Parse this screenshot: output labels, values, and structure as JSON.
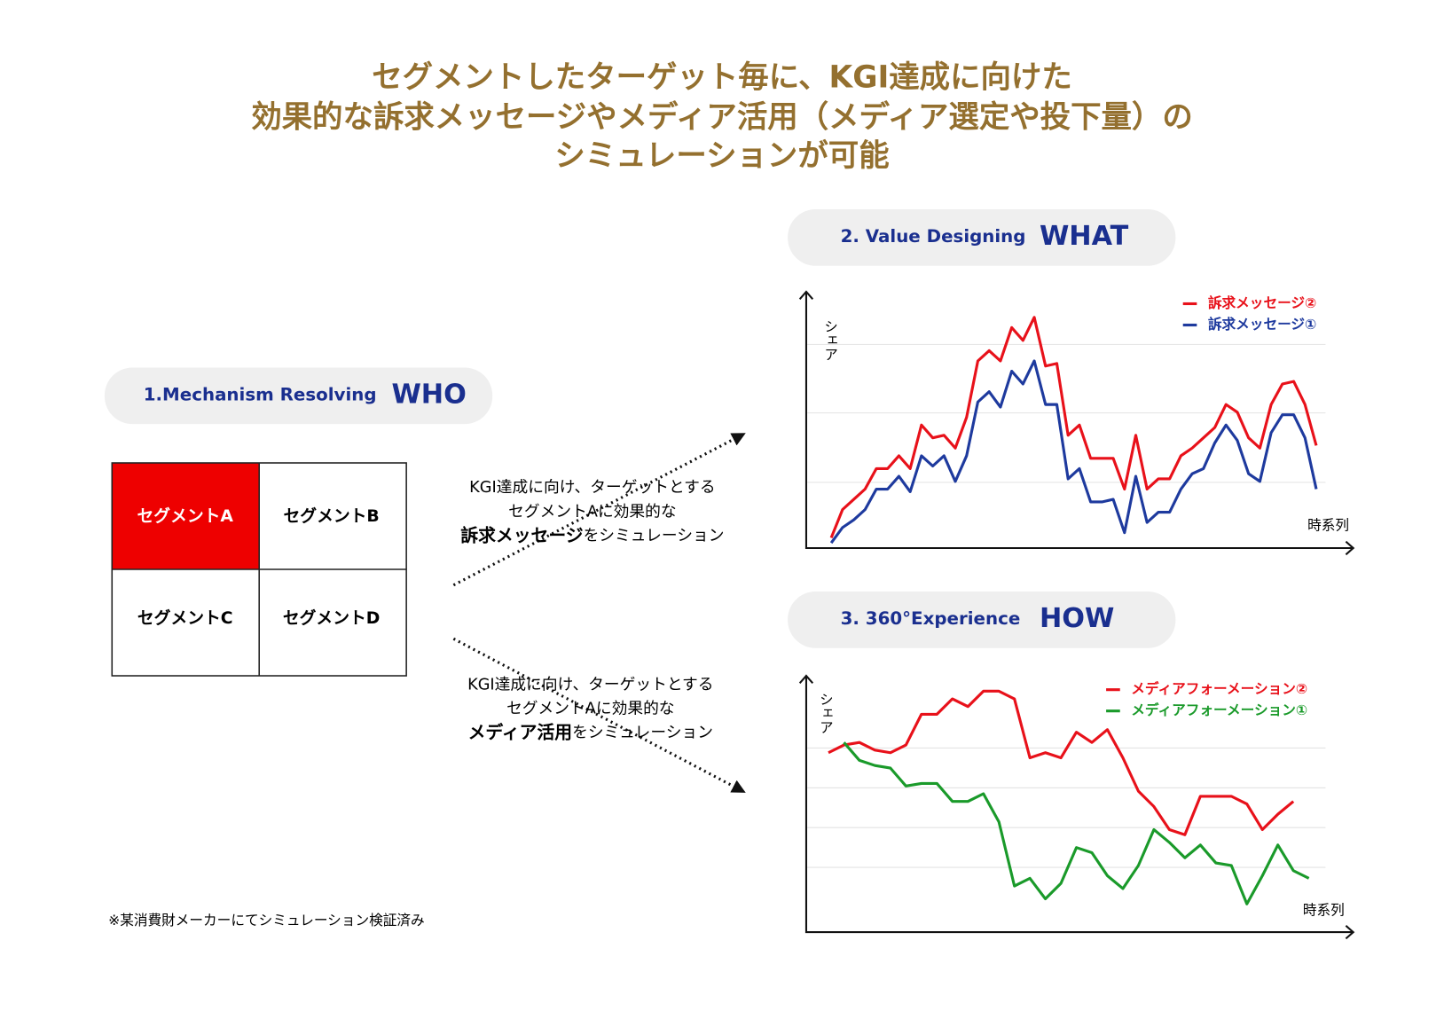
{
  "header": {
    "title": [
      "セグメントしたターゲット毎に、KGI達成に向けた",
      "効果的な訴求メッセージやメディア活用（メディア選定や投下量）の",
      "シミュレーションが可能"
    ]
  },
  "steps": [
    {
      "label": "1.Mechanism Resolving",
      "key": "WHO"
    },
    {
      "label": "2. Value Designing",
      "key": "WHAT"
    },
    {
      "label": "3. 360°Experience",
      "key": "HOW"
    }
  ],
  "segments": [
    "セグメントA",
    "セグメントB",
    "セグメントC",
    "セグメントD"
  ],
  "notes": [
    {
      "lines": [
        "KGI達成に向け、ターゲットとする",
        "セグメントAに効果的な"
      ],
      "bold": "訴求メッセージ",
      "rest": "をシミュレーション"
    },
    {
      "lines": [
        "KGI達成に向け、ターゲットとする",
        "セグメントAに効果的な"
      ],
      "bold": "メディア活用",
      "rest": "をシミュレーション"
    }
  ],
  "footnote": "※某消費財メーカーにてシミュレーション検証済み",
  "chart_data": [
    {
      "type": "line",
      "x_label": "時系列",
      "y_label": "シェア",
      "ylim": [
        0,
        100
      ],
      "grid": true,
      "legend": "top-right",
      "series": [
        {
          "name": "訴求メッセージ②",
          "color": "#e8111a",
          "values": [
            4,
            15,
            19,
            23,
            31,
            31,
            36,
            31,
            48,
            43,
            44,
            39,
            51,
            73,
            77,
            73,
            86,
            81,
            90,
            71,
            72,
            44,
            48,
            35,
            35,
            35,
            23,
            44,
            23,
            27,
            27,
            36,
            39,
            43,
            47,
            56,
            53,
            43,
            39,
            56,
            64,
            65,
            56,
            40
          ]
        },
        {
          "name": "訴求メッセージ①",
          "color": "#1e3a9e",
          "values": [
            2,
            8,
            11,
            15,
            23,
            23,
            28,
            22,
            36,
            32,
            36,
            26,
            36,
            57,
            61,
            55,
            69,
            64,
            73,
            56,
            56,
            27,
            31,
            18,
            18,
            19,
            6,
            28,
            10,
            14,
            14,
            23,
            29,
            31,
            41,
            48,
            42,
            29,
            26,
            45,
            52,
            52,
            43,
            23
          ]
        }
      ]
    },
    {
      "type": "line",
      "x_label": "時系列",
      "y_label": "シェア",
      "ylim": [
        0,
        100
      ],
      "grid": true,
      "legend": "top-right",
      "series": [
        {
          "name": "メディアフォーメーション②",
          "color": "#e8111a",
          "values": [
            70,
            73,
            74,
            71,
            70,
            73,
            85,
            85,
            91,
            88,
            94,
            94,
            91,
            68,
            70,
            68,
            78,
            74,
            79,
            68,
            55,
            49,
            40,
            38,
            53,
            53,
            53,
            50,
            40,
            46,
            51,
            null
          ]
        },
        {
          "name": "メディアフォーメーション①",
          "color": "#1a9a2a",
          "values": [
            null,
            74,
            67,
            65,
            64,
            57,
            58,
            58,
            51,
            51,
            54,
            43,
            18,
            21,
            13,
            19,
            33,
            31,
            22,
            17,
            26,
            40,
            35,
            29,
            34,
            27,
            26,
            11,
            22,
            34,
            24,
            21
          ]
        }
      ]
    }
  ]
}
